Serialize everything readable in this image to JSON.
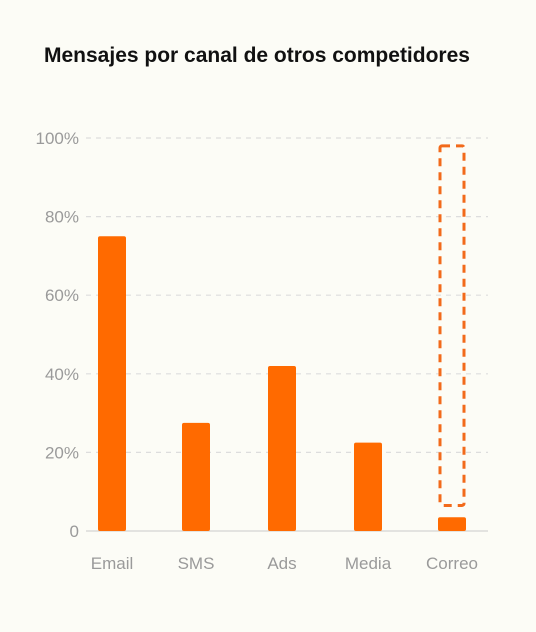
{
  "chart_data": {
    "type": "bar",
    "title": "Mensajes por canal de otros competidores",
    "categories": [
      "Email",
      "SMS",
      "Ads",
      "Media",
      "Correo"
    ],
    "values": [
      75,
      27.5,
      42,
      22.5,
      3.5
    ],
    "ylim": [
      0,
      100
    ],
    "yticks": [
      0,
      20,
      40,
      60,
      80,
      100
    ],
    "ytick_labels": [
      "0",
      "20%",
      "40%",
      "60%",
      "80%",
      "100%"
    ],
    "xlabel": "",
    "ylabel": "",
    "grid": true,
    "highlight": {
      "category": "Correo",
      "style": "dashed-outline",
      "range": [
        6.5,
        98
      ]
    },
    "colors": {
      "bar": "#ff6a00",
      "highlight": "#f26a1b",
      "grid": "#dddddd",
      "tick": "#9a9a9a",
      "title": "#111111",
      "background": "#fcfcf6"
    }
  }
}
